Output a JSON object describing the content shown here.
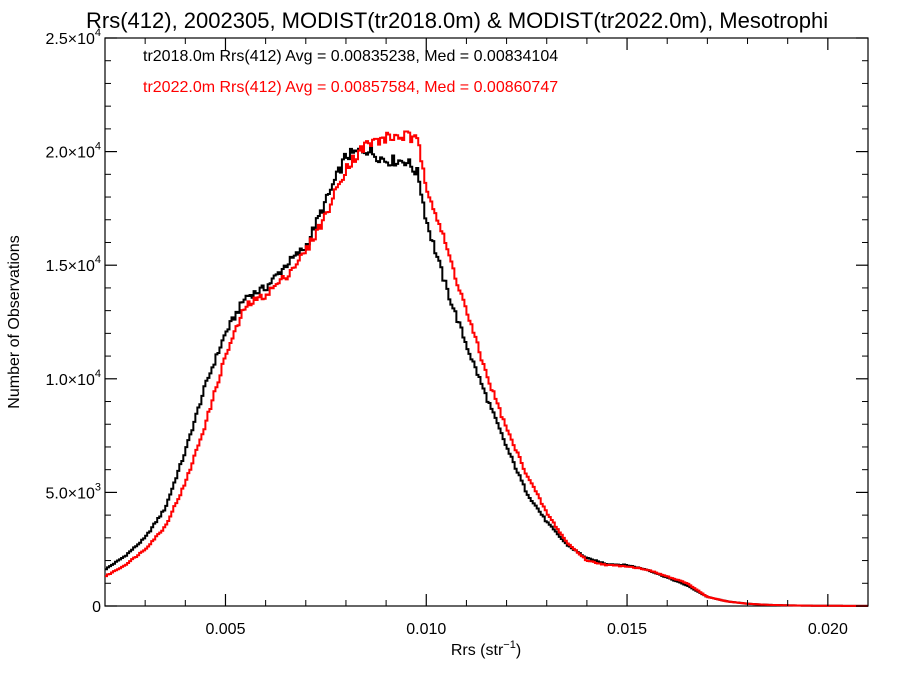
{
  "chart_data": {
    "type": "line",
    "style": "step-histogram",
    "title": "Rrs(412), 2002305, MODIST(tr2018.0m) & MODIST(tr2022.0m), Mesotrophi",
    "xlabel": "Rrs (str",
    "xlabel_sup": "−1",
    "xlabel_end": ")",
    "ylabel": "Number of Observations",
    "xlim": [
      0.002,
      0.021
    ],
    "ylim": [
      0,
      25000
    ],
    "grid": false,
    "legend_placement": "top-left",
    "x_ticks": [
      {
        "value": 0.005,
        "label": "0.005"
      },
      {
        "value": 0.01,
        "label": "0.010"
      },
      {
        "value": 0.015,
        "label": "0.015"
      },
      {
        "value": 0.02,
        "label": "0.020"
      }
    ],
    "y_ticks": [
      {
        "value": 0,
        "base": "0",
        "exp": ""
      },
      {
        "value": 5000,
        "base": "5.0×10",
        "exp": "3"
      },
      {
        "value": 10000,
        "base": "1.0×10",
        "exp": "4"
      },
      {
        "value": 15000,
        "base": "1.5×10",
        "exp": "4"
      },
      {
        "value": 20000,
        "base": "2.0×10",
        "exp": "4"
      },
      {
        "value": 25000,
        "base": "2.5×10",
        "exp": "4"
      }
    ],
    "series": [
      {
        "name": "tr2018.0m",
        "legend": "tr2018.0m Rrs(412) Avg = 0.00835238, Med = 0.00834104",
        "color": "#000000",
        "x": [
          0.002,
          0.0025,
          0.003,
          0.0035,
          0.004,
          0.0045,
          0.005,
          0.0055,
          0.006,
          0.0065,
          0.007,
          0.0075,
          0.008,
          0.0085,
          0.009,
          0.0095,
          0.0098,
          0.01,
          0.0105,
          0.011,
          0.0115,
          0.012,
          0.0125,
          0.013,
          0.0135,
          0.014,
          0.0145,
          0.015,
          0.0155,
          0.016,
          0.0165,
          0.017,
          0.0175,
          0.018,
          0.0185,
          0.019,
          0.0195,
          0.02,
          0.021
        ],
        "y": [
          1600,
          2200,
          3000,
          4300,
          6800,
          9700,
          12000,
          13600,
          14000,
          15000,
          15800,
          17800,
          19800,
          20100,
          19600,
          19600,
          19000,
          17000,
          14000,
          11500,
          9200,
          7000,
          5000,
          3700,
          2700,
          2100,
          1850,
          1800,
          1600,
          1250,
          900,
          400,
          200,
          100,
          50,
          30,
          15,
          10,
          5
        ]
      },
      {
        "name": "tr2022.0m",
        "legend": "tr2022.0m Rrs(412) Avg = 0.00857584, Med = 0.00860747",
        "color": "#ff0000",
        "x": [
          0.002,
          0.0025,
          0.003,
          0.0035,
          0.004,
          0.0045,
          0.005,
          0.0055,
          0.006,
          0.0065,
          0.007,
          0.0075,
          0.008,
          0.0085,
          0.009,
          0.0095,
          0.0098,
          0.01,
          0.0105,
          0.011,
          0.0115,
          0.012,
          0.0125,
          0.013,
          0.0135,
          0.014,
          0.0145,
          0.015,
          0.0155,
          0.016,
          0.0165,
          0.017,
          0.0175,
          0.018,
          0.0185,
          0.019,
          0.0195,
          0.02,
          0.021
        ],
        "y": [
          1300,
          1800,
          2500,
          3500,
          5400,
          8000,
          11000,
          13200,
          13700,
          14500,
          15600,
          17200,
          19300,
          20300,
          20600,
          20700,
          20400,
          18600,
          15800,
          13000,
          10200,
          7800,
          5800,
          4100,
          2800,
          2000,
          1800,
          1750,
          1600,
          1300,
          1000,
          400,
          200,
          100,
          50,
          30,
          15,
          10,
          5
        ]
      }
    ]
  }
}
